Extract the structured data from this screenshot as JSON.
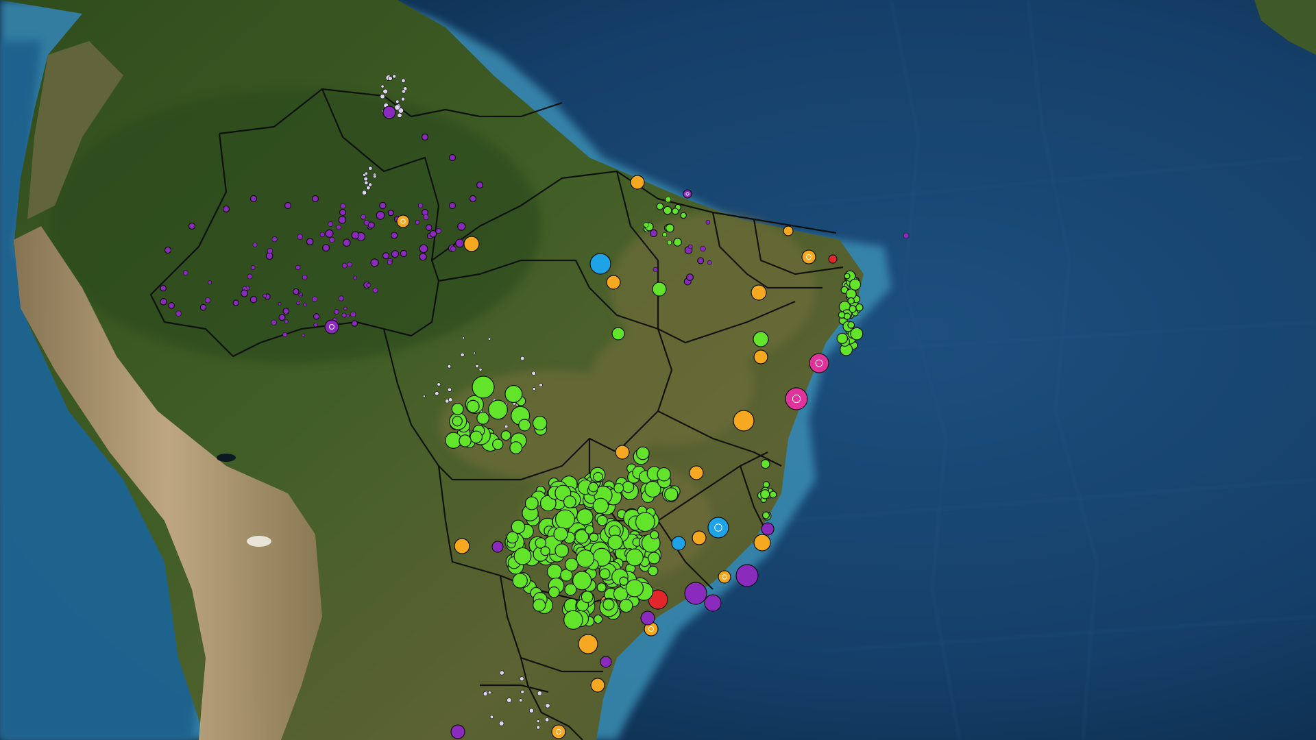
{
  "map": {
    "type": "satellite-basemap",
    "region": "Brazil",
    "labels": [],
    "colors": {
      "ocean_deep": "#0c2d4c",
      "ocean_mid": "#1b4c78",
      "ocean_shelf": "#3f8fb0",
      "land_forest": "#3c5a24",
      "land_savanna": "#6a6a3a",
      "andes": "#b09472",
      "state_border": "#0b0b0b"
    }
  },
  "legend": {
    "categories": [
      {
        "id": "cat-green",
        "color": "#62e42b"
      },
      {
        "id": "cat-purple",
        "color": "#8a2bbd"
      },
      {
        "id": "cat-orange",
        "color": "#f7a821"
      },
      {
        "id": "cat-blue",
        "color": "#1ea3e6"
      },
      {
        "id": "cat-red",
        "color": "#e3262a"
      },
      {
        "id": "cat-magenta",
        "color": "#e0339c"
      },
      {
        "id": "cat-white",
        "color": "#ddd6ee"
      }
    ]
  }
}
